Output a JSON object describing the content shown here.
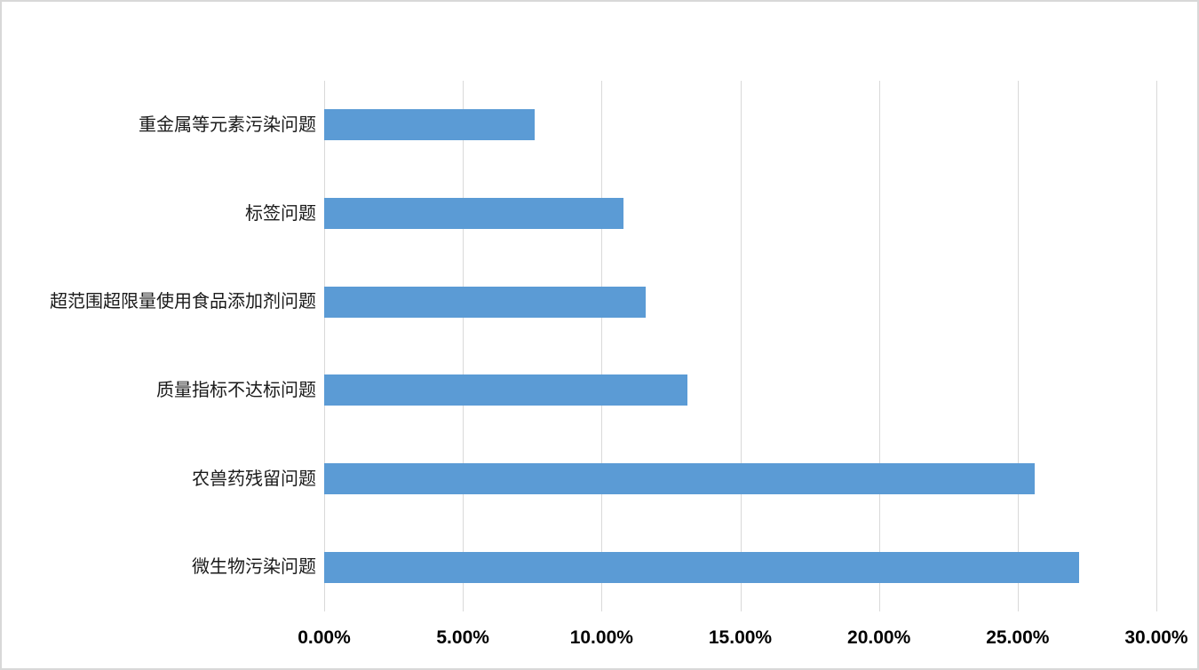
{
  "chart_data": {
    "type": "bar",
    "orientation": "horizontal",
    "title": "",
    "xlabel": "",
    "ylabel": "",
    "xlim": [
      0,
      30
    ],
    "grid": true,
    "legend": false,
    "bar_color": "#5B9BD5",
    "gridline_color": "#D9D9D9",
    "rows_top_to_bottom": [
      {
        "label": "重金属等元素污染问题",
        "value": 7.6
      },
      {
        "label": "标签问题",
        "value": 10.8
      },
      {
        "label": "超范围超限量使用食品添加剂问题",
        "value": 11.6
      },
      {
        "label": "质量指标不达标问题",
        "value": 13.1
      },
      {
        "label": "农兽药残留问题",
        "value": 25.6
      },
      {
        "label": "微生物污染问题",
        "value": 27.2
      }
    ],
    "categories": [
      "微生物污染问题",
      "农兽药残留问题",
      "质量指标不达标问题",
      "超范围超限量使用食品添加剂问题",
      "标签问题",
      "重金属等元素污染问题"
    ],
    "values": [
      27.2,
      25.6,
      13.1,
      11.6,
      10.8,
      7.6
    ],
    "x_ticks": [
      {
        "label": "0.00%",
        "value": 0
      },
      {
        "label": "5.00%",
        "value": 5
      },
      {
        "label": "10.00%",
        "value": 10
      },
      {
        "label": "15.00%",
        "value": 15
      },
      {
        "label": "20.00%",
        "value": 20
      },
      {
        "label": "25.00%",
        "value": 25
      },
      {
        "label": "30.00%",
        "value": 30
      }
    ]
  }
}
